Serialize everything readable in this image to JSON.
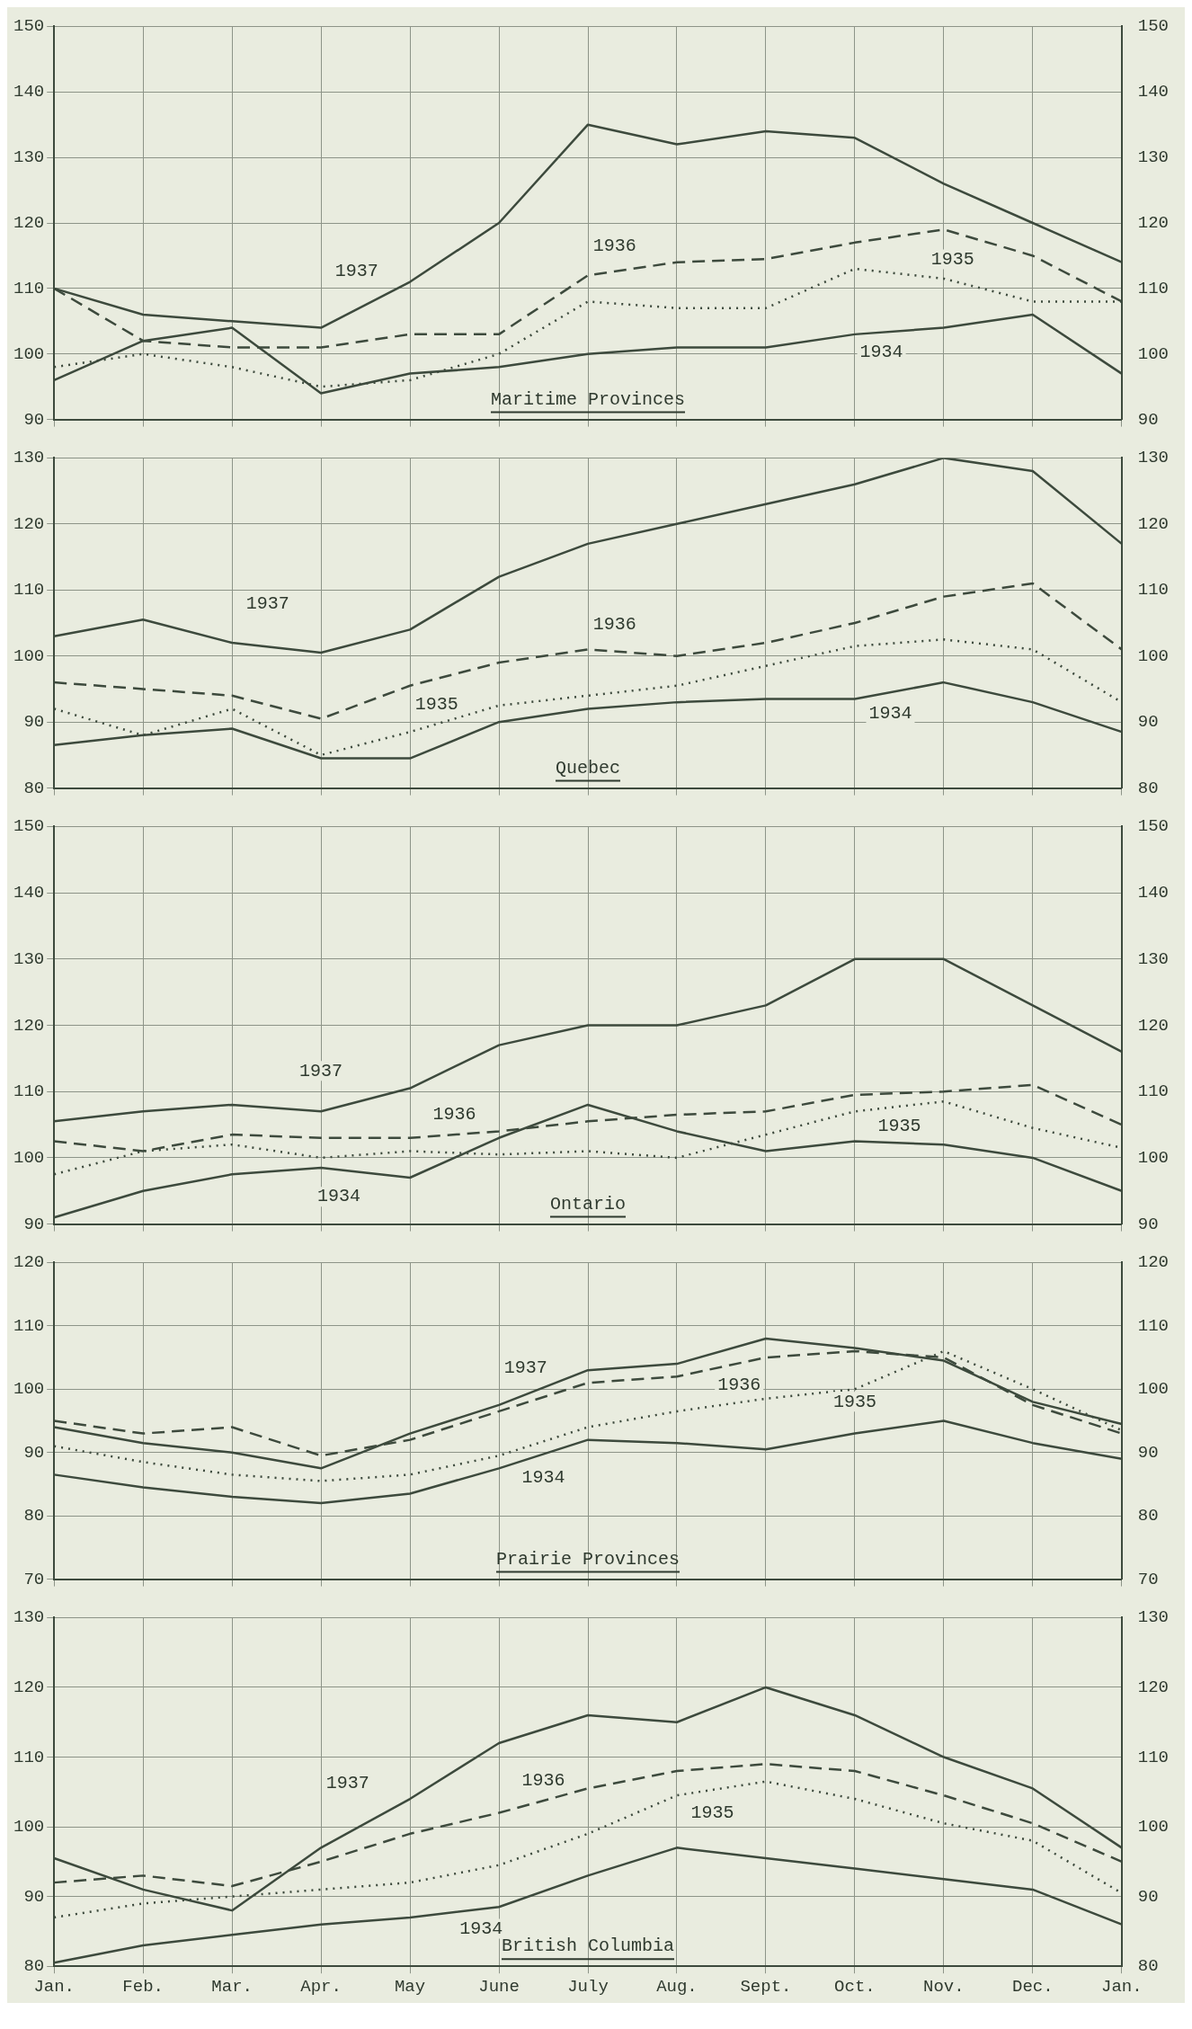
{
  "chart_data": [
    {
      "type": "line",
      "title": "Maritime Provinces",
      "categories": [
        null,
        null,
        null,
        null,
        null,
        null,
        null,
        null,
        null,
        null,
        null,
        null,
        null
      ],
      "ylim": [
        90,
        150
      ],
      "yticks": [
        90,
        100,
        110,
        120,
        130,
        140,
        150
      ],
      "y2lim": [
        90,
        150
      ],
      "y2ticks": [
        90,
        100,
        110,
        120,
        130,
        140,
        150
      ],
      "grid": true,
      "tick_labels": "y",
      "marker": "none",
      "series": [
        {
          "name": "1934",
          "color": "#3d4a3d",
          "line_style": "solid",
          "values": [
            96,
            102,
            104,
            94,
            97,
            98,
            100,
            101,
            101,
            103,
            104,
            106,
            97
          ]
        },
        {
          "name": "1935",
          "color": "#3d4a3d",
          "line_style": "dotted",
          "values": [
            98,
            100,
            98,
            95,
            96,
            100,
            108,
            107,
            107,
            113,
            111.5,
            108,
            108
          ]
        },
        {
          "name": "1936",
          "color": "#3d4a3d",
          "line_style": "dashed",
          "values": [
            110,
            102,
            101,
            101,
            103,
            103,
            112,
            114,
            114.5,
            117,
            119,
            115,
            108
          ]
        },
        {
          "name": "1937",
          "color": "#3d4a3d",
          "line_style": "solid",
          "values": [
            110,
            106,
            105,
            104,
            111,
            120,
            135,
            132,
            134,
            133,
            126,
            120,
            114
          ]
        }
      ]
    },
    {
      "type": "line",
      "title": "Quebec",
      "categories": [
        null,
        null,
        null,
        null,
        null,
        null,
        null,
        null,
        null,
        null,
        null,
        null,
        null
      ],
      "ylim": [
        80,
        130
      ],
      "yticks": [
        80,
        90,
        100,
        110,
        120,
        130
      ],
      "y2lim": [
        80,
        130
      ],
      "y2ticks": [
        80,
        90,
        100,
        110,
        120,
        130
      ],
      "grid": true,
      "tick_labels": "y",
      "marker": "none",
      "series": [
        {
          "name": "1934",
          "color": "#3d4a3d",
          "line_style": "solid",
          "values": [
            86.5,
            88,
            89,
            84.5,
            84.5,
            90,
            92,
            93,
            93.5,
            93.5,
            96,
            93,
            88.5
          ]
        },
        {
          "name": "1935",
          "color": "#3d4a3d",
          "line_style": "dotted",
          "values": [
            92,
            88,
            92,
            85,
            88.5,
            92.5,
            94,
            95.5,
            98.5,
            101.5,
            102.5,
            101,
            93
          ]
        },
        {
          "name": "1936",
          "color": "#3d4a3d",
          "line_style": "dashed",
          "values": [
            96,
            95,
            94,
            90.5,
            95.5,
            99,
            101,
            100,
            102,
            105,
            109,
            111,
            101
          ]
        },
        {
          "name": "1937",
          "color": "#3d4a3d",
          "line_style": "solid",
          "values": [
            103,
            105.5,
            102,
            100.5,
            104,
            112,
            117,
            120,
            123,
            126,
            130,
            128,
            117
          ]
        }
      ]
    },
    {
      "type": "line",
      "title": "Ontario",
      "categories": [
        null,
        null,
        null,
        null,
        null,
        null,
        null,
        null,
        null,
        null,
        null,
        null,
        null
      ],
      "ylim": [
        90,
        150
      ],
      "yticks": [
        90,
        100,
        110,
        120,
        130,
        140,
        150
      ],
      "y2lim": [
        90,
        150
      ],
      "y2ticks": [
        90,
        100,
        110,
        120,
        130,
        140,
        150
      ],
      "grid": true,
      "tick_labels": "y",
      "marker": "none",
      "series": [
        {
          "name": "1934",
          "color": "#3d4a3d",
          "line_style": "solid",
          "values": [
            91,
            95,
            97.5,
            98.5,
            97,
            103,
            108,
            104,
            101,
            102.5,
            102,
            100,
            95
          ]
        },
        {
          "name": "1935",
          "color": "#3d4a3d",
          "line_style": "dotted",
          "values": [
            97.5,
            101,
            102,
            100,
            101,
            100.5,
            101,
            100,
            103.5,
            107,
            108.5,
            104.5,
            101.5
          ]
        },
        {
          "name": "1936",
          "color": "#3d4a3d",
          "line_style": "dashed",
          "values": [
            102.5,
            101,
            103.5,
            103,
            103,
            104,
            105.5,
            106.5,
            107,
            109.5,
            110,
            111,
            105
          ]
        },
        {
          "name": "1937",
          "color": "#3d4a3d",
          "line_style": "solid",
          "values": [
            105.5,
            107,
            108,
            107,
            110.5,
            117,
            120,
            120,
            123,
            130,
            130,
            123,
            116
          ]
        }
      ]
    },
    {
      "type": "line",
      "title": "Prairie Provinces",
      "categories": [
        null,
        null,
        null,
        null,
        null,
        null,
        null,
        null,
        null,
        null,
        null,
        null,
        null
      ],
      "ylim": [
        70,
        120
      ],
      "yticks": [
        70,
        80,
        90,
        100,
        110,
        120
      ],
      "y2lim": [
        70,
        120
      ],
      "y2ticks": [
        70,
        80,
        90,
        100,
        110,
        120
      ],
      "grid": true,
      "tick_labels": "y",
      "marker": "none",
      "series": [
        {
          "name": "1934",
          "color": "#3d4a3d",
          "line_style": "solid",
          "values": [
            86.5,
            84.5,
            83,
            82,
            83.5,
            87.5,
            92,
            91.5,
            90.5,
            93,
            95,
            91.5,
            89
          ]
        },
        {
          "name": "1935",
          "color": "#3d4a3d",
          "line_style": "dotted",
          "values": [
            91,
            88.5,
            86.5,
            85.5,
            86.5,
            89.5,
            94,
            96.5,
            98.5,
            100,
            106,
            100,
            93.5
          ]
        },
        {
          "name": "1936",
          "color": "#3d4a3d",
          "line_style": "dashed",
          "values": [
            95,
            93,
            94,
            89.5,
            92,
            96.5,
            101,
            102,
            105,
            106,
            105,
            97.5,
            93
          ]
        },
        {
          "name": "1937",
          "color": "#3d4a3d",
          "line_style": "solid",
          "values": [
            94,
            91.5,
            90,
            87.5,
            93,
            97.5,
            103,
            104,
            108,
            106.5,
            104.5,
            98,
            94.5
          ]
        }
      ]
    },
    {
      "type": "line",
      "title": "British Columbia",
      "categories": [
        "Jan.",
        "Feb.",
        "Mar.",
        "Apr.",
        "May",
        "June",
        "July",
        "Aug.",
        "Sept.",
        "Oct.",
        "Nov.",
        "Dec.",
        "Jan."
      ],
      "ylim": [
        80,
        130
      ],
      "yticks": [
        80,
        90,
        100,
        110,
        120,
        130
      ],
      "y2lim": [
        80,
        130
      ],
      "y2ticks": [
        80,
        90,
        100,
        110,
        120,
        130
      ],
      "grid": true,
      "marker": "none",
      "series": [
        {
          "name": "1934",
          "color": "#3d4a3d",
          "line_style": "solid",
          "values": [
            80.5,
            83,
            84.5,
            86,
            87,
            88.5,
            93,
            97,
            95.5,
            94,
            92.5,
            91,
            86
          ]
        },
        {
          "name": "1935",
          "color": "#3d4a3d",
          "line_style": "dotted",
          "values": [
            87,
            89,
            90,
            91,
            92,
            94.5,
            99,
            104.5,
            106.5,
            104,
            100.5,
            98,
            90.5
          ]
        },
        {
          "name": "1936",
          "color": "#3d4a3d",
          "line_style": "dashed",
          "values": [
            92,
            93,
            91.5,
            95,
            99,
            102,
            105.5,
            108,
            109,
            108,
            104.5,
            100.5,
            95
          ]
        },
        {
          "name": "1937",
          "color": "#3d4a3d",
          "line_style": "solid",
          "values": [
            95.5,
            91,
            88,
            97,
            104,
            112,
            116,
            115,
            120,
            116,
            110,
            105.5,
            97
          ]
        }
      ]
    }
  ]
}
